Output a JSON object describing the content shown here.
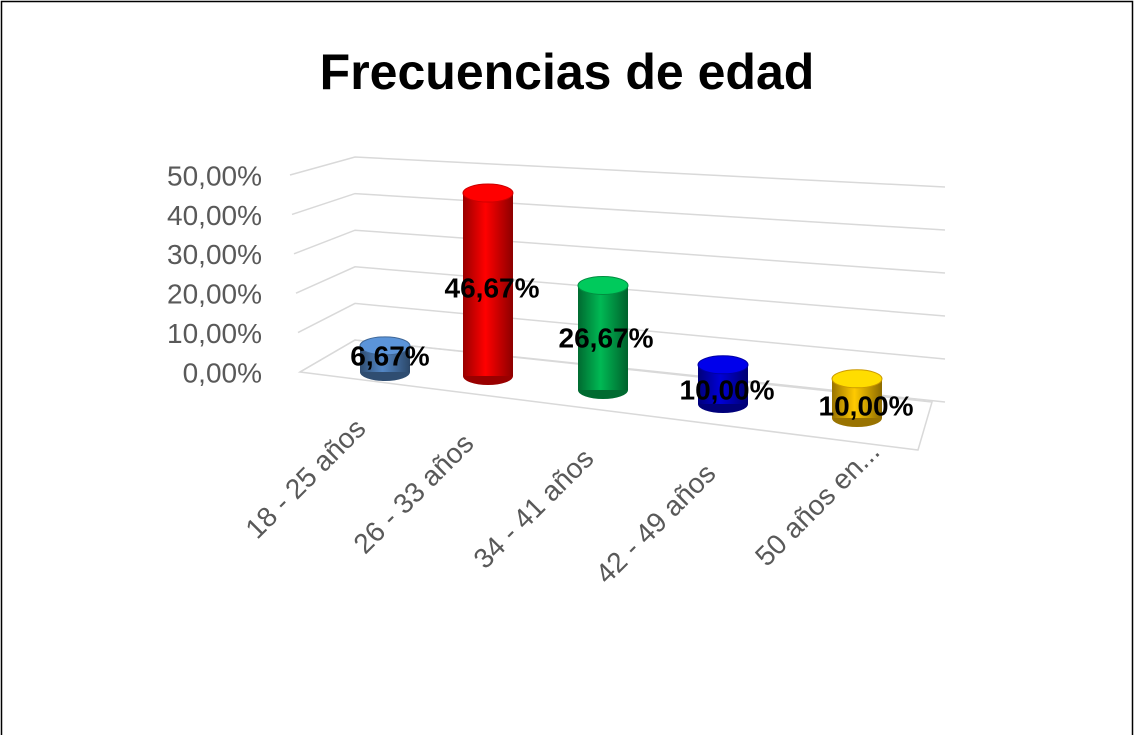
{
  "chart_data": {
    "type": "bar3d",
    "title": "Frecuencias de edad",
    "categories": [
      "18 - 25 años",
      "26 - 33 años",
      "34 - 41 años",
      "42 - 49 años",
      "50 años en..."
    ],
    "values": [
      6.67,
      46.67,
      26.67,
      10,
      10
    ],
    "value_labels": [
      "6,67%",
      "46,67%",
      "26,67%",
      "10,00%",
      "10,00%"
    ],
    "colors": [
      "#4f81bd",
      "#ff0000",
      "#00b050",
      "#0000cc",
      "#ffc000"
    ],
    "ylim": [
      0,
      50
    ],
    "yticks": [
      {
        "value": 0,
        "label": "0,00%"
      },
      {
        "value": 10,
        "label": "10,00%"
      },
      {
        "value": 20,
        "label": "20,00%"
      },
      {
        "value": 30,
        "label": "30,00%"
      },
      {
        "value": 40,
        "label": "40,00%"
      },
      {
        "value": 50,
        "label": "50,00%"
      }
    ],
    "grid": true
  }
}
